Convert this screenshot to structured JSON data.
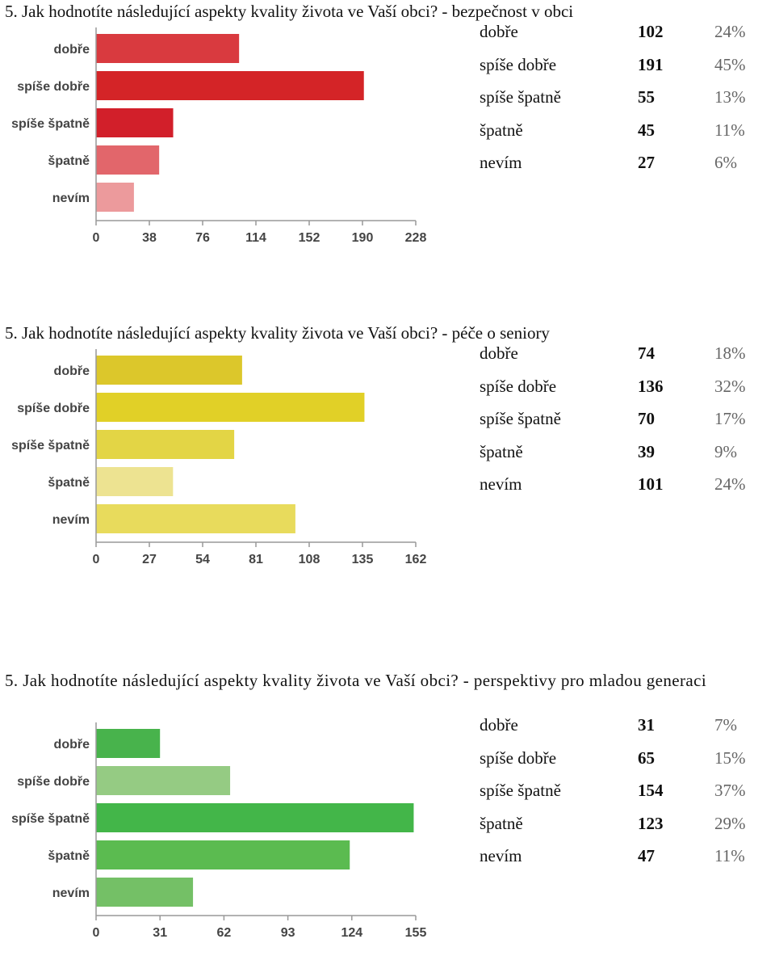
{
  "charts": [
    {
      "title": "5. Jak hodnotíte následující aspekty kvality života ve Vaší obci? - bezpečnost v obci",
      "rows": [
        {
          "label": "dobře",
          "count": "102",
          "pct": "24%"
        },
        {
          "label": "spíše dobře",
          "count": "191",
          "pct": "45%"
        },
        {
          "label": "spíše špatně",
          "count": "55",
          "pct": "13%"
        },
        {
          "label": "špatně",
          "count": "45",
          "pct": "11%"
        },
        {
          "label": "nevím",
          "count": "27",
          "pct": "6%"
        }
      ]
    },
    {
      "title": "5. Jak hodnotíte následující aspekty kvality života ve Vaší obci? - péče o seniory",
      "rows": [
        {
          "label": "dobře",
          "count": "74",
          "pct": "18%"
        },
        {
          "label": "spíše dobře",
          "count": "136",
          "pct": "32%"
        },
        {
          "label": "spíše špatně",
          "count": "70",
          "pct": "17%"
        },
        {
          "label": "špatně",
          "count": "39",
          "pct": "9%"
        },
        {
          "label": "nevím",
          "count": "101",
          "pct": "24%"
        }
      ]
    },
    {
      "title": "5. Jak hodnotíte následující aspekty kvality života ve Vaší obci? - perspektivy pro mladou generaci",
      "rows": [
        {
          "label": "dobře",
          "count": "31",
          "pct": "7%"
        },
        {
          "label": "spíše dobře",
          "count": "65",
          "pct": "15%"
        },
        {
          "label": "spíše špatně",
          "count": "154",
          "pct": "37%"
        },
        {
          "label": "špatně",
          "count": "123",
          "pct": "29%"
        },
        {
          "label": "nevím",
          "count": "47",
          "pct": "11%"
        }
      ]
    }
  ],
  "chart_data": [
    {
      "type": "bar",
      "orientation": "horizontal",
      "title": "5. Jak hodnotíte následující aspekty kvality života ve Vaší obci? - bezpečnost v obci",
      "categories": [
        "dobře",
        "spíše dobře",
        "spíše špatně",
        "špatně",
        "nevím"
      ],
      "values": [
        102,
        191,
        55,
        45,
        27
      ],
      "ticks": [
        0,
        38,
        76,
        114,
        152,
        190,
        228
      ],
      "xlim": [
        0,
        228
      ],
      "grid": false,
      "bar_colors": [
        "#d93a3f",
        "#d42427",
        "#d21f2a",
        "#e2666b",
        "#ec9a9c"
      ]
    },
    {
      "type": "bar",
      "orientation": "horizontal",
      "title": "5. Jak hodnotíte následující aspekty kvality života ve Vaší obci? - péče o seniory",
      "categories": [
        "dobře",
        "spíše dobře",
        "spíše špatně",
        "špatně",
        "nevím"
      ],
      "values": [
        74,
        136,
        70,
        39,
        101
      ],
      "ticks": [
        0,
        27,
        54,
        81,
        108,
        135,
        162
      ],
      "xlim": [
        0,
        162
      ],
      "grid": false,
      "bar_colors": [
        "#dcc72b",
        "#e1d027",
        "#e3d545",
        "#ede391",
        "#e8db5c"
      ]
    },
    {
      "type": "bar",
      "orientation": "horizontal",
      "title": "5. Jak hodnotíte následující aspekty kvality života ve Vaší obci? - perspektivy pro mladou generaci",
      "categories": [
        "dobře",
        "spíše dobře",
        "spíše špatně",
        "špatně",
        "nevím"
      ],
      "values": [
        31,
        65,
        154,
        123,
        47
      ],
      "ticks": [
        0,
        31,
        62,
        93,
        124,
        155
      ],
      "xlim": [
        0,
        155
      ],
      "grid": false,
      "bar_colors": [
        "#48b34c",
        "#95cb83",
        "#43b649",
        "#5bbb50",
        "#74c066"
      ]
    }
  ]
}
